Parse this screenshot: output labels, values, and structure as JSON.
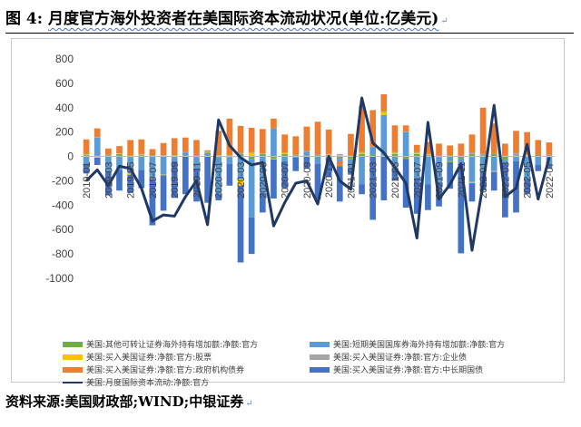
{
  "figure": {
    "label": "图 4:",
    "title": "月度官方海外投资者在美国际资本流动状况(单位:亿美元)",
    "source": "资料来源:美国财政部;WIND;中银证券"
  },
  "chart_data": {
    "type": "bar",
    "stacked": true,
    "ylim": [
      -1000,
      800
    ],
    "yticks": [
      800,
      600,
      400,
      200,
      0,
      -200,
      -400,
      -600,
      -800,
      -1000
    ],
    "grid": false,
    "legend_position": "bottom",
    "categories": [
      "2019-01",
      "2019-02",
      "2019-03",
      "2019-04",
      "2019-05",
      "2019-06",
      "2019-07",
      "2019-08",
      "2019-09",
      "2019-10",
      "2019-11",
      "2019-12",
      "2020-01",
      "2020-02",
      "2020-03",
      "2020-04",
      "2020-05",
      "2020-06",
      "2020-07",
      "2020-08",
      "2020-09",
      "2020-10",
      "2020-11",
      "2020-12",
      "2021-01",
      "2021-02",
      "2021-03",
      "2021-04",
      "2021-05",
      "2021-06",
      "2021-07",
      "2021-08",
      "2021-09",
      "2021-10",
      "2021-11",
      "2021-12",
      "2022-01",
      "2022-02",
      "2022-03",
      "2022-04",
      "2022-05",
      "2022-06",
      "2022-07"
    ],
    "x_tick_labels": [
      "2019-01",
      "2019-03",
      "2019-05",
      "2019-07",
      "2019-09",
      "2019-11",
      "2020-01",
      "2020-03",
      "2020-05",
      "2020-07",
      "2020-09",
      "2020-11",
      "2021-01",
      "2021-03",
      "2021-05",
      "2021-07",
      "2021-09",
      "2021-11",
      "2022-01",
      "2022-03",
      "2022-05",
      "2022-07"
    ],
    "series": [
      {
        "name": "美国:其他可转让证券海外持有增加额:净额:官方",
        "color": "#70ad47",
        "kind": "bar",
        "values": [
          10,
          5,
          10,
          20,
          -10,
          10,
          10,
          5,
          -10,
          10,
          -10,
          10,
          -10,
          -10,
          20,
          -20,
          20,
          -20,
          20,
          10,
          10,
          10,
          10,
          -20,
          -20,
          20,
          15,
          10,
          20,
          -20,
          20,
          10,
          -10,
          10,
          -15,
          20,
          10,
          20,
          -30,
          10,
          5,
          15,
          10
        ]
      },
      {
        "name": "美国:短期美国国库券海外持有增加额:净额:官方",
        "color": "#5b9bd5",
        "kind": "bar",
        "values": [
          -60,
          150,
          -120,
          -110,
          -130,
          -110,
          -180,
          -150,
          -30,
          20,
          -90,
          20,
          -300,
          -50,
          -190,
          -480,
          -300,
          230,
          -40,
          -10,
          30,
          -60,
          -10,
          -20,
          -80,
          -230,
          60,
          330,
          -100,
          200,
          -180,
          -230,
          -200,
          -40,
          -100,
          -210,
          -120,
          -120,
          -20,
          -40,
          -180,
          -70,
          -70
        ]
      },
      {
        "name": "美国:买入美国证券:净额:官方:股票",
        "color": "#ffc000",
        "kind": "bar",
        "values": [
          5,
          -10,
          0,
          5,
          -10,
          5,
          0,
          -5,
          5,
          0,
          0,
          5,
          5,
          0,
          -50,
          30,
          0,
          -5,
          10,
          0,
          0,
          0,
          5,
          10,
          0,
          10,
          0,
          20,
          10,
          0,
          10,
          5,
          0,
          -5,
          0,
          -10,
          0,
          0,
          0,
          0,
          10,
          0,
          0
        ]
      },
      {
        "name": "美国:买入美国证券:净额:官方:企业债",
        "color": "#a5a5a5",
        "kind": "bar",
        "values": [
          5,
          5,
          5,
          0,
          5,
          5,
          -5,
          5,
          5,
          5,
          5,
          5,
          5,
          10,
          10,
          5,
          5,
          0,
          0,
          5,
          5,
          5,
          5,
          10,
          5,
          5,
          5,
          10,
          5,
          5,
          5,
          5,
          5,
          0,
          5,
          10,
          10,
          -10,
          5,
          20,
          5,
          0,
          5
        ]
      },
      {
        "name": "美国:买入美国证券:净额:官方:政府机构债券",
        "color": "#ed7d31",
        "kind": "bar",
        "values": [
          120,
          70,
          50,
          60,
          130,
          120,
          50,
          100,
          140,
          120,
          130,
          10,
          200,
          300,
          220,
          200,
          200,
          80,
          150,
          150,
          200,
          270,
          200,
          -40,
          180,
          380,
          300,
          140,
          220,
          50,
          60,
          100,
          100,
          80,
          100,
          150,
          380,
          250,
          100,
          180,
          180,
          120,
          100
        ]
      },
      {
        "name": "美国:买入美国证券:净额:官方:中长期国债",
        "color": "#4472c4",
        "kind": "bar",
        "values": [
          -80,
          -60,
          -200,
          -170,
          -150,
          -150,
          -380,
          -290,
          -300,
          -310,
          -270,
          -380,
          -50,
          -180,
          -630,
          -300,
          -160,
          -320,
          -220,
          -110,
          -100,
          -290,
          -160,
          -290,
          -50,
          -80,
          -520,
          -360,
          -100,
          -400,
          -290,
          -210,
          -200,
          -220,
          -680,
          -150,
          -160,
          -150,
          -450,
          -420,
          -130,
          -50,
          -30
        ]
      },
      {
        "name": "美国:月度国际资本流动:净额:官方",
        "color": "#203864",
        "kind": "line",
        "values": [
          -200,
          -110,
          -240,
          -80,
          -100,
          -260,
          -530,
          -480,
          -490,
          -330,
          -200,
          -560,
          300,
          90,
          -10,
          -70,
          -50,
          -570,
          -380,
          -220,
          -200,
          -390,
          0,
          -200,
          -270,
          480,
          110,
          30,
          -90,
          -220,
          -670,
          280,
          -350,
          -230,
          -60,
          -770,
          -230,
          420,
          -330,
          -260,
          100,
          -350,
          -10
        ]
      }
    ]
  }
}
